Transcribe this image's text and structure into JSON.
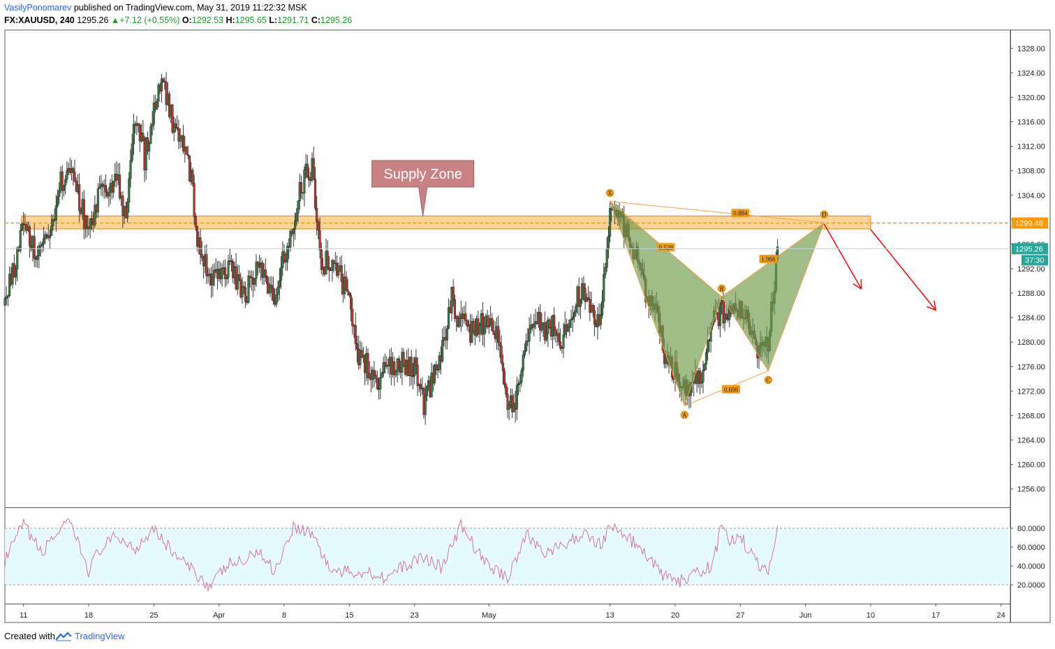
{
  "header": {
    "author": "VasilyPonomarev",
    "published_text": "published on TradingView.com, May 31, 2019 11:22:32 MSK",
    "symbol": "FX:XAUUSD, 240",
    "last": "1295.26",
    "change": "+7.12 (+0.55%)",
    "o_label": "O:",
    "o_value": "1292.53",
    "h_label": "H:",
    "h_value": "1295.65",
    "l_label": "L:",
    "l_value": "1291.71",
    "c_label": "C:",
    "c_value": "1295.26"
  },
  "footer": {
    "created_with": "Created with",
    "brand": "TradingView"
  },
  "chart_data": {
    "type": "candlestick",
    "symbol": "FX:XAUUSD",
    "interval": "240",
    "y_range": [
      1253,
      1331
    ],
    "price_ticks": [
      1256,
      1260,
      1264,
      1268,
      1272,
      1276,
      1280,
      1284,
      1288,
      1292,
      1296,
      1300,
      1304,
      1308,
      1312,
      1316,
      1320,
      1324,
      1328
    ],
    "x_range": [
      "2019-03-09",
      "2019-06-25"
    ],
    "x_ticks": [
      {
        "date": "2019-03-11",
        "label": "11"
      },
      {
        "date": "2019-03-18",
        "label": "18"
      },
      {
        "date": "2019-03-25",
        "label": "25"
      },
      {
        "date": "2019-04-01",
        "label": "Apr"
      },
      {
        "date": "2019-04-08",
        "label": "8"
      },
      {
        "date": "2019-04-15",
        "label": "15"
      },
      {
        "date": "2019-04-22",
        "label": "23"
      },
      {
        "date": "2019-04-30",
        "label": "May"
      },
      {
        "date": "2019-05-13",
        "label": "13"
      },
      {
        "date": "2019-05-20",
        "label": "20"
      },
      {
        "date": "2019-05-27",
        "label": "27"
      },
      {
        "date": "2019-06-03",
        "label": "Jun"
      },
      {
        "date": "2019-06-10",
        "label": "10"
      },
      {
        "date": "2019-06-17",
        "label": "17"
      },
      {
        "date": "2019-06-24",
        "label": "24"
      }
    ],
    "price_path": [
      [
        "2019-03-09",
        1286
      ],
      [
        "2019-03-11",
        1299
      ],
      [
        "2019-03-12",
        1296
      ],
      [
        "2019-03-13",
        1294
      ],
      [
        "2019-03-14",
        1299
      ],
      [
        "2019-03-15",
        1306
      ],
      [
        "2019-03-16",
        1308
      ],
      [
        "2019-03-18",
        1298
      ],
      [
        "2019-03-19",
        1304
      ],
      [
        "2019-03-20",
        1304
      ],
      [
        "2019-03-21",
        1308
      ],
      [
        "2019-03-22",
        1300
      ],
      [
        "2019-03-23",
        1317
      ],
      [
        "2019-03-24",
        1310
      ],
      [
        "2019-03-25",
        1318
      ],
      [
        "2019-03-26",
        1323
      ],
      [
        "2019-03-27",
        1316
      ],
      [
        "2019-03-28",
        1312
      ],
      [
        "2019-03-29",
        1307
      ],
      [
        "2019-03-30",
        1293
      ],
      [
        "2019-04-01",
        1290
      ],
      [
        "2019-04-02",
        1293
      ],
      [
        "2019-04-03",
        1290
      ],
      [
        "2019-04-04",
        1288
      ],
      [
        "2019-04-05",
        1293
      ],
      [
        "2019-04-06",
        1290
      ],
      [
        "2019-04-07",
        1288
      ],
      [
        "2019-04-08",
        1294
      ],
      [
        "2019-04-09",
        1300
      ],
      [
        "2019-04-10",
        1306
      ],
      [
        "2019-04-11",
        1309
      ],
      [
        "2019-04-12",
        1293
      ],
      [
        "2019-04-13",
        1293
      ],
      [
        "2019-04-15",
        1288
      ],
      [
        "2019-04-16",
        1278
      ],
      [
        "2019-04-17",
        1276
      ],
      [
        "2019-04-18",
        1274
      ],
      [
        "2019-04-19",
        1275
      ],
      [
        "2019-04-20",
        1277
      ],
      [
        "2019-04-22",
        1276
      ],
      [
        "2019-04-23",
        1270
      ],
      [
        "2019-04-24",
        1274
      ],
      [
        "2019-04-25",
        1279
      ],
      [
        "2019-04-26",
        1287
      ],
      [
        "2019-04-27",
        1283
      ],
      [
        "2019-04-28",
        1282
      ],
      [
        "2019-04-29",
        1283
      ],
      [
        "2019-04-30",
        1283
      ],
      [
        "2019-05-01",
        1280
      ],
      [
        "2019-05-02",
        1270
      ],
      [
        "2019-05-03",
        1271
      ],
      [
        "2019-05-04",
        1280
      ],
      [
        "2019-05-05",
        1285
      ],
      [
        "2019-05-06",
        1282
      ],
      [
        "2019-05-07",
        1283
      ],
      [
        "2019-05-08",
        1280
      ],
      [
        "2019-05-09",
        1286
      ],
      [
        "2019-05-10",
        1288
      ],
      [
        "2019-05-11",
        1285
      ],
      [
        "2019-05-12",
        1284
      ],
      [
        "2019-05-13",
        1300
      ],
      [
        "2019-05-14",
        1300
      ],
      [
        "2019-05-15",
        1297
      ],
      [
        "2019-05-16",
        1293
      ],
      [
        "2019-05-17",
        1286
      ],
      [
        "2019-05-18",
        1286
      ],
      [
        "2019-05-19",
        1276
      ],
      [
        "2019-05-20",
        1275
      ],
      [
        "2019-05-21",
        1273
      ],
      [
        "2019-05-22",
        1273
      ],
      [
        "2019-05-23",
        1274
      ],
      [
        "2019-05-24",
        1284
      ],
      [
        "2019-05-25",
        1285
      ],
      [
        "2019-05-26",
        1284
      ],
      [
        "2019-05-27",
        1286
      ],
      [
        "2019-05-28",
        1283
      ],
      [
        "2019-05-29",
        1278
      ],
      [
        "2019-05-30",
        1280
      ],
      [
        "2019-05-31",
        1295
      ]
    ],
    "supply_zone": {
      "label": "Supply Zone",
      "low": 1298.5,
      "high": 1300.6,
      "from": "2019-03-09",
      "to": "2019-06-10"
    },
    "level_line": {
      "price": 1299.46,
      "label": "1299.46"
    },
    "last_price": {
      "price": 1295.26,
      "label": "1295.26",
      "countdown": "37:30"
    },
    "harmonic_pattern": {
      "points": [
        {
          "label": "X",
          "date": "2019-05-13",
          "price": 1303.0
        },
        {
          "label": "A",
          "date": "2019-05-21",
          "price": 1269.6
        },
        {
          "label": "B",
          "date": "2019-05-25",
          "price": 1287.4
        },
        {
          "label": "C",
          "date": "2019-05-30",
          "price": 1275.3
        },
        {
          "label": "D",
          "date": "2019-06-05",
          "price": 1299.5
        }
      ],
      "ratios": [
        {
          "value": "0.884",
          "date": "2019-05-27",
          "price": 1301.1
        },
        {
          "value": "0.529",
          "date": "2019-05-19",
          "price": 1295.5
        },
        {
          "value": "0.696",
          "date": "2019-05-26",
          "price": 1272.3
        },
        {
          "value": "1.966",
          "date": "2019-05-30",
          "price": 1293.6
        }
      ],
      "fill": "#6d9a4a",
      "stroke": "#f0a14a"
    },
    "arrows": [
      {
        "from": [
          "2019-06-05",
          1299.3
        ],
        "to": [
          "2019-06-09",
          1288.7
        ]
      },
      {
        "from": [
          "2019-06-10",
          1298.4
        ],
        "to": [
          "2019-06-17",
          1285.2
        ]
      }
    ],
    "rsi": {
      "type": "line",
      "overbought": 80,
      "oversold": 20,
      "ticks": [
        "80.0000",
        "60.0000",
        "40.0000",
        "20.0000"
      ],
      "path": [
        [
          "2019-03-09",
          45
        ],
        [
          "2019-03-11",
          85
        ],
        [
          "2019-03-13",
          52
        ],
        [
          "2019-03-14",
          70
        ],
        [
          "2019-03-16",
          86
        ],
        [
          "2019-03-18",
          35
        ],
        [
          "2019-03-19",
          55
        ],
        [
          "2019-03-21",
          72
        ],
        [
          "2019-03-23",
          58
        ],
        [
          "2019-03-25",
          82
        ],
        [
          "2019-03-26",
          66
        ],
        [
          "2019-03-28",
          45
        ],
        [
          "2019-03-30",
          28
        ],
        [
          "2019-03-31",
          18
        ],
        [
          "2019-04-02",
          42
        ],
        [
          "2019-04-04",
          45
        ],
        [
          "2019-04-05",
          58
        ],
        [
          "2019-04-07",
          35
        ],
        [
          "2019-04-09",
          82
        ],
        [
          "2019-04-11",
          75
        ],
        [
          "2019-04-13",
          35
        ],
        [
          "2019-04-15",
          33
        ],
        [
          "2019-04-17",
          34
        ],
        [
          "2019-04-19",
          28
        ],
        [
          "2019-04-21",
          40
        ],
        [
          "2019-04-23",
          50
        ],
        [
          "2019-04-25",
          38
        ],
        [
          "2019-04-27",
          83
        ],
        [
          "2019-04-29",
          52
        ],
        [
          "2019-04-30",
          40
        ],
        [
          "2019-05-02",
          28
        ],
        [
          "2019-05-04",
          73
        ],
        [
          "2019-05-06",
          55
        ],
        [
          "2019-05-08",
          60
        ],
        [
          "2019-05-10",
          75
        ],
        [
          "2019-05-12",
          63
        ],
        [
          "2019-05-13",
          82
        ],
        [
          "2019-05-15",
          70
        ],
        [
          "2019-05-17",
          50
        ],
        [
          "2019-05-18",
          38
        ],
        [
          "2019-05-19",
          28
        ],
        [
          "2019-05-20",
          22
        ],
        [
          "2019-05-22",
          30
        ],
        [
          "2019-05-24",
          40
        ],
        [
          "2019-05-25",
          83
        ],
        [
          "2019-05-26",
          65
        ],
        [
          "2019-05-27",
          72
        ],
        [
          "2019-05-28",
          55
        ],
        [
          "2019-05-29",
          40
        ],
        [
          "2019-05-30",
          35
        ],
        [
          "2019-05-31",
          82
        ]
      ]
    },
    "colors": {
      "up": "#53b987",
      "down": "#eb4d5c",
      "body_up": "#3a7d44",
      "body_down": "#c0392b",
      "zone_fill": "#ffb74d",
      "zone_border": "#f57c00",
      "level": "#ff9800",
      "callout": "#c98282",
      "arrow": "#ff0000",
      "rsi_line": "#d66fa7",
      "rsi_band": "#e6fbff",
      "last_tag": "#26a69a"
    }
  }
}
